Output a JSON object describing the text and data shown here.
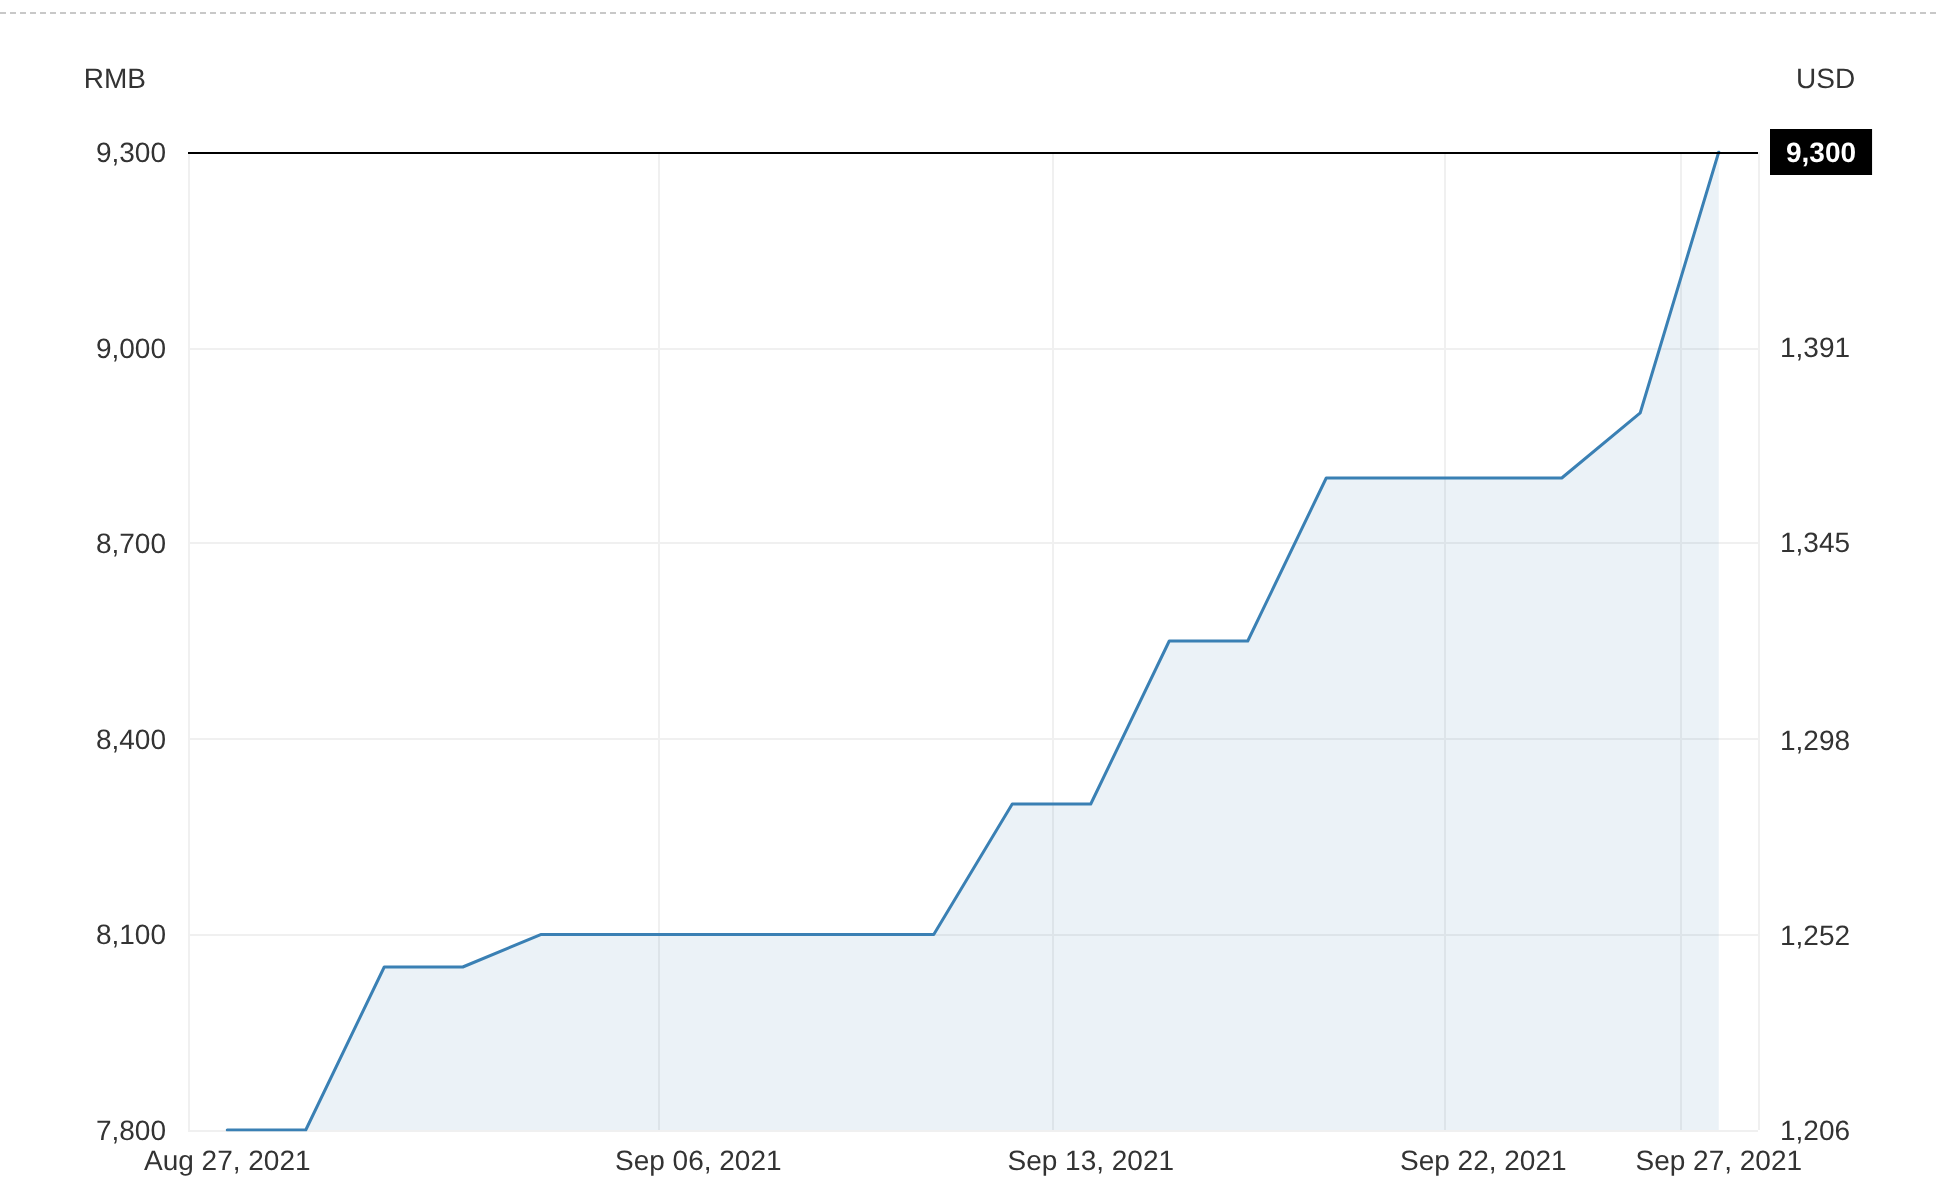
{
  "chart_data": {
    "type": "area",
    "ylabel": "RMB",
    "y2label": "USD",
    "categories": [
      "Aug 27, 2021",
      null,
      null,
      null,
      null,
      null,
      "Sep 06, 2021",
      null,
      null,
      null,
      null,
      "Sep 13, 2021",
      null,
      null,
      null,
      null,
      "Sep 22, 2021",
      null,
      null,
      "Sep 27, 2021"
    ],
    "values": [
      7800,
      7800,
      8050,
      8050,
      8100,
      8100,
      8100,
      8100,
      8100,
      8100,
      8300,
      8300,
      8550,
      8550,
      8800,
      8800,
      8800,
      8800,
      8900,
      9300
    ],
    "color": "#3a80b4",
    "ylim": [
      7800,
      9300
    ],
    "yticks": [
      {
        "value": 7800,
        "label": "7,800"
      },
      {
        "value": 8100,
        "label": "8,100"
      },
      {
        "value": 8400,
        "label": "8,400"
      },
      {
        "value": 8700,
        "label": "8,700"
      },
      {
        "value": 9000,
        "label": "9,000"
      },
      {
        "value": 9300,
        "label": "9,300"
      }
    ],
    "y2lim": [
      1206,
      1437
    ],
    "y2ticks": [
      {
        "value": 1206,
        "label": "1,206"
      },
      {
        "value": 1252,
        "label": "1,252"
      },
      {
        "value": 1298,
        "label": "1,298"
      },
      {
        "value": 1345,
        "label": "1,345"
      },
      {
        "value": 1391,
        "label": "1,391"
      }
    ],
    "ref_lines": [
      {
        "axis": "y",
        "value": 9300,
        "label": "9,300",
        "color": "#000000"
      }
    ],
    "grid": true,
    "marker": "none"
  }
}
